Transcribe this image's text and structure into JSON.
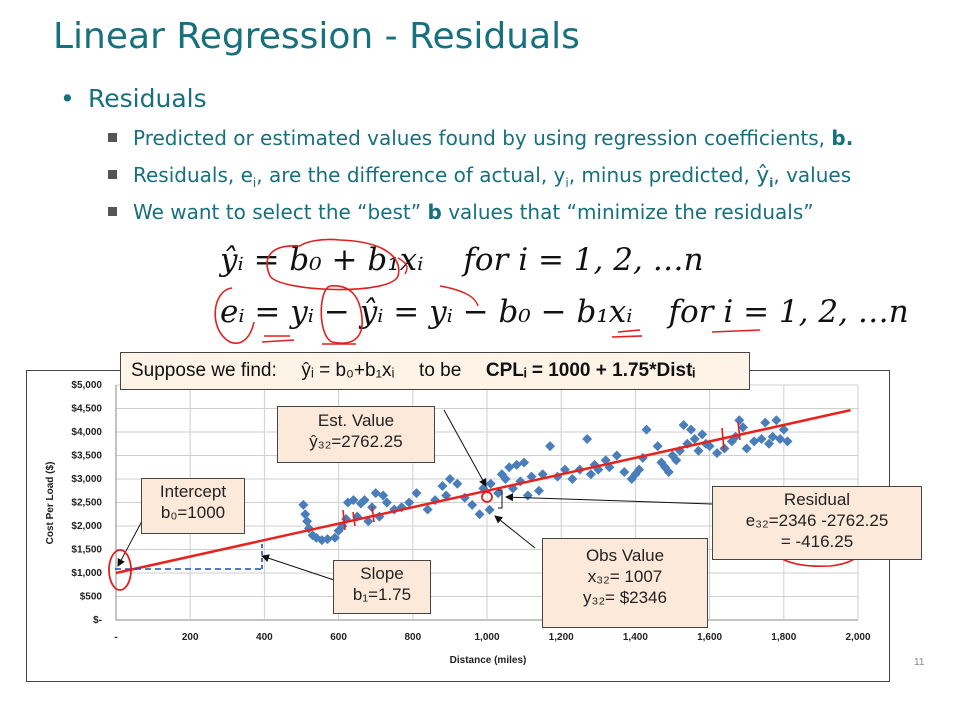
{
  "slide": {
    "title": "Linear Regression - Residuals",
    "bullet": "Residuals",
    "sub1_text": "Predicted or estimated values found by using regression coefficients,",
    "sub1_bold": "b.",
    "sub2_a": "Residuals, e",
    "sub2_i1": "i",
    "sub2_b": ", are the difference of actual, y",
    "sub2_i2": "i",
    "sub2_c": ", minus predicted,",
    "sub2_yhat": "ŷ",
    "sub2_i3": "i",
    "sub2_d": ", values",
    "sub3_a": "We want to select the “best”",
    "sub3_bold": "b",
    "sub3_b": "values that",
    "sub3_c": "“minimize the residuals”",
    "page_number": "11"
  },
  "equations": {
    "eq1": "ŷᵢ = b₀ + b₁xᵢ",
    "eq1_for": "for i = 1, 2, …n",
    "eq2": "eᵢ = yᵢ − ŷᵢ = yᵢ − b₀ − b₁xᵢ",
    "eq2_for": "for i = 1, 2, …n"
  },
  "suppose": {
    "text1": "Suppose we find:",
    "text2": "ŷᵢ = b₀+b₁xᵢ",
    "text3": "to be",
    "bold": "CPLᵢ = 1000 + 1.75*Distᵢ"
  },
  "callouts": {
    "intercept_l1": "Intercept",
    "intercept_l2": "b₀=1000",
    "slope_l1": "Slope",
    "slope_l2": "b₁=1.75",
    "est_l1": "Est. Value",
    "est_l2": "ŷ₃₂=2762.25",
    "obs_l1": "Obs Value",
    "obs_l2": "x₃₂= 1007",
    "obs_l3": "y₃₂= $2346",
    "res_l1": "Residual",
    "res_l2": "e₃₂=2346 -2762.25",
    "res_l3": "= -416.25"
  },
  "chart_data": {
    "type": "scatter",
    "xlabel": "Distance (miles)",
    "ylabel": "Cost Per Load ($)",
    "xlim": [
      0,
      2000
    ],
    "ylim": [
      0,
      5000
    ],
    "x_ticks": [
      "-",
      "200",
      "400",
      "600",
      "800",
      "1,000",
      "1,200",
      "1,400",
      "1,600",
      "1,800",
      "2,000"
    ],
    "y_ticks": [
      "$-",
      "$500",
      "$1,000",
      "$1,500",
      "$2,000",
      "$2,500",
      "$3,000",
      "$3,500",
      "$4,000",
      "$4,500",
      "$5,000"
    ],
    "grid": true,
    "regression": {
      "intercept": 1000,
      "slope": 1.75,
      "x_range": [
        0,
        1980
      ]
    },
    "colors": {
      "points": "#4a7ebb",
      "line": "#e8221c"
    },
    "points": [
      [
        505,
        2450
      ],
      [
        510,
        2250
      ],
      [
        515,
        2100
      ],
      [
        520,
        1950
      ],
      [
        530,
        1800
      ],
      [
        540,
        1750
      ],
      [
        555,
        1700
      ],
      [
        570,
        1720
      ],
      [
        590,
        1750
      ],
      [
        600,
        1900
      ],
      [
        610,
        2000
      ],
      [
        620,
        2150
      ],
      [
        625,
        2500
      ],
      [
        640,
        2550
      ],
      [
        650,
        2200
      ],
      [
        660,
        2480
      ],
      [
        670,
        2550
      ],
      [
        680,
        2100
      ],
      [
        690,
        2400
      ],
      [
        700,
        2700
      ],
      [
        710,
        2200
      ],
      [
        720,
        2650
      ],
      [
        730,
        2500
      ],
      [
        750,
        2350
      ],
      [
        770,
        2400
      ],
      [
        790,
        2500
      ],
      [
        810,
        2700
      ],
      [
        840,
        2350
      ],
      [
        860,
        2550
      ],
      [
        880,
        2850
      ],
      [
        890,
        2650
      ],
      [
        900,
        3000
      ],
      [
        920,
        2900
      ],
      [
        940,
        2600
      ],
      [
        960,
        2450
      ],
      [
        980,
        2250
      ],
      [
        990,
        2800
      ],
      [
        1007,
        2346
      ],
      [
        1010,
        2900
      ],
      [
        1030,
        2700
      ],
      [
        1040,
        3100
      ],
      [
        1050,
        3000
      ],
      [
        1060,
        3250
      ],
      [
        1070,
        2800
      ],
      [
        1080,
        3300
      ],
      [
        1090,
        2950
      ],
      [
        1100,
        3350
      ],
      [
        1110,
        2650
      ],
      [
        1120,
        3050
      ],
      [
        1140,
        2750
      ],
      [
        1150,
        3100
      ],
      [
        1170,
        3700
      ],
      [
        1190,
        3050
      ],
      [
        1210,
        3200
      ],
      [
        1230,
        3000
      ],
      [
        1250,
        3200
      ],
      [
        1270,
        3850
      ],
      [
        1280,
        3100
      ],
      [
        1290,
        3300
      ],
      [
        1300,
        3200
      ],
      [
        1320,
        3400
      ],
      [
        1330,
        3250
      ],
      [
        1350,
        3500
      ],
      [
        1370,
        3150
      ],
      [
        1390,
        3000
      ],
      [
        1400,
        3100
      ],
      [
        1410,
        3200
      ],
      [
        1420,
        3450
      ],
      [
        1430,
        4050
      ],
      [
        1460,
        3700
      ],
      [
        1470,
        3350
      ],
      [
        1480,
        3250
      ],
      [
        1490,
        3150
      ],
      [
        1500,
        3500
      ],
      [
        1510,
        3400
      ],
      [
        1520,
        3600
      ],
      [
        1530,
        4150
      ],
      [
        1540,
        3750
      ],
      [
        1550,
        4050
      ],
      [
        1560,
        3850
      ],
      [
        1570,
        3600
      ],
      [
        1580,
        3950
      ],
      [
        1590,
        3750
      ],
      [
        1600,
        3700
      ],
      [
        1620,
        3550
      ],
      [
        1640,
        3650
      ],
      [
        1660,
        3800
      ],
      [
        1670,
        3900
      ],
      [
        1680,
        4250
      ],
      [
        1690,
        4100
      ],
      [
        1700,
        3650
      ],
      [
        1720,
        3800
      ],
      [
        1740,
        3850
      ],
      [
        1750,
        4200
      ],
      [
        1760,
        3750
      ],
      [
        1770,
        3900
      ],
      [
        1780,
        4250
      ],
      [
        1790,
        3850
      ],
      [
        1800,
        4050
      ],
      [
        1810,
        3800
      ]
    ]
  }
}
